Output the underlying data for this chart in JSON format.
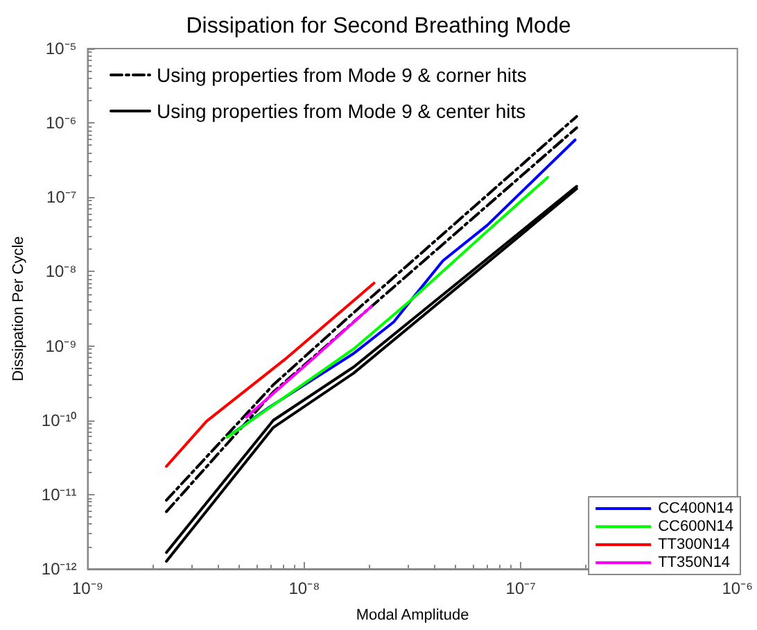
{
  "chart_data": {
    "type": "line",
    "title": "Dissipation for Second Breathing Mode",
    "xlabel": "Modal Amplitude",
    "ylabel": "Dissipation Per Cycle",
    "log": "xy",
    "grid": false,
    "legend": "bottom right",
    "marker": "none",
    "xlim": [
      1e-09,
      1e-06
    ],
    "ylim": [
      1e-12,
      1e-05
    ],
    "xticks": [
      {
        "value": 1e-09,
        "label": "10⁻⁹"
      },
      {
        "value": 1e-08,
        "label": "10⁻⁸"
      },
      {
        "value": 1e-07,
        "label": "10⁻⁷"
      },
      {
        "value": 1e-06,
        "label": "10⁻⁶"
      }
    ],
    "yticks": [
      {
        "value": 1e-12,
        "label": "10⁻¹²"
      },
      {
        "value": 1e-11,
        "label": "10⁻¹¹"
      },
      {
        "value": 1e-10,
        "label": "10⁻¹⁰"
      },
      {
        "value": 1e-09,
        "label": "10⁻⁹"
      },
      {
        "value": 1e-08,
        "label": "10⁻⁸"
      },
      {
        "value": 1e-07,
        "label": "10⁻⁷"
      },
      {
        "value": 1e-06,
        "label": "10⁻⁶"
      },
      {
        "value": 1e-05,
        "label": "10⁻⁵"
      }
    ],
    "series": [
      {
        "name": "Using properties from Mode 9 & corner hits",
        "color": "#000000",
        "line_style": "dashdot",
        "x": [
          2.31e-09,
          7.2e-09,
          1.69e-08,
          1.81e-07
        ],
        "values": [
          8.4e-12,
          3e-10,
          2.8e-09,
          1.22e-06
        ]
      },
      {
        "color": "#000000",
        "line_style": "dashdot",
        "x": [
          2.31e-09,
          7.2e-09,
          1.69e-08,
          1.81e-07
        ],
        "values": [
          5.9e-12,
          2.4e-10,
          2.1e-09,
          8.6e-07
        ]
      },
      {
        "name": "Using properties from Mode 9 & center hits",
        "color": "#000000",
        "line_style": "solid",
        "x": [
          2.31e-09,
          7.2e-09,
          1.69e-08,
          1.81e-07
        ],
        "values": [
          1.67e-12,
          1e-10,
          5.2e-10,
          1.4e-07
        ]
      },
      {
        "color": "#000000",
        "line_style": "solid",
        "x": [
          2.31e-09,
          7.2e-09,
          1.69e-08,
          1.81e-07
        ],
        "values": [
          1.27e-12,
          8e-11,
          4.3e-10,
          1.3e-07
        ]
      },
      {
        "name": "CC400N14",
        "color": "#0000ff",
        "x": [
          4.6e-09,
          6.9e-09,
          1.69e-08,
          2.59e-08,
          3.13e-08,
          4.37e-08,
          7e-08,
          1.78e-07
        ],
        "values": [
          6.5e-11,
          1.5e-10,
          7.9e-10,
          2.1e-09,
          4.2e-09,
          1.4e-08,
          4.2e-08,
          5.9e-07
        ]
      },
      {
        "name": "CC600N14",
        "color": "#00ff00",
        "x": [
          4.4e-09,
          1.69e-08,
          3.13e-08,
          7e-08,
          1.33e-07
        ],
        "values": [
          5.9e-11,
          9.1e-10,
          4.2e-09,
          3.5e-08,
          1.85e-07
        ]
      },
      {
        "name": "TT300N14",
        "color": "#ff0000",
        "x": [
          2.31e-09,
          3.54e-09,
          8.3e-09,
          2.1e-08
        ],
        "values": [
          2.4e-11,
          9.7e-11,
          6.9e-10,
          7e-09
        ]
      },
      {
        "name": "TT350N14",
        "color": "#ff00ff",
        "x": [
          5.4e-09,
          1.05e-08,
          2.04e-08
        ],
        "values": [
          1.1e-10,
          6e-10,
          3.4e-09
        ]
      }
    ]
  }
}
